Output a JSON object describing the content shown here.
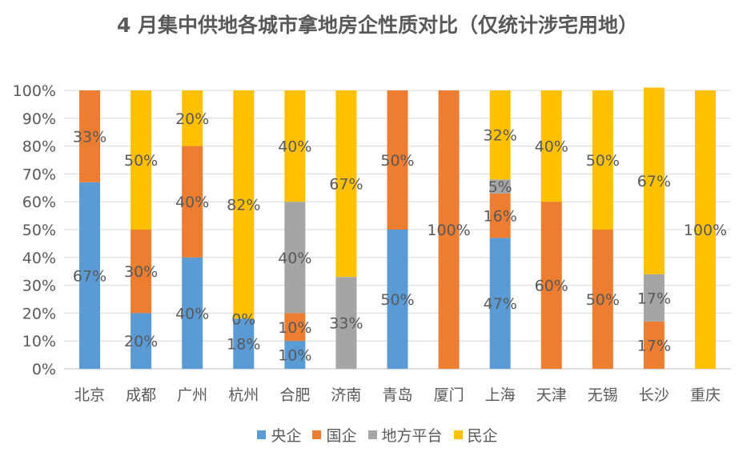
{
  "chart_data": {
    "type": "bar",
    "stacked": true,
    "title": "4 月集中供地各城市拿地房企性质对比（仅统计涉宅用地）",
    "categories": [
      "北京",
      "成都",
      "广州",
      "杭州",
      "合肥",
      "济南",
      "青岛",
      "厦门",
      "上海",
      "天津",
      "无锡",
      "长沙",
      "重庆"
    ],
    "yticks": [
      "0%",
      "10%",
      "20%",
      "30%",
      "40%",
      "50%",
      "60%",
      "70%",
      "80%",
      "90%",
      "100%"
    ],
    "ylim": [
      0,
      100
    ],
    "series": [
      {
        "name": "央企",
        "color": "#5B9BD5",
        "values": [
          67,
          20,
          40,
          18,
          10,
          0,
          50,
          0,
          47,
          0,
          0,
          0,
          0
        ],
        "labels": [
          "67%",
          "20%",
          "40%",
          "18%",
          "10%",
          "",
          "50%",
          "",
          "47%",
          "",
          "",
          "",
          ""
        ]
      },
      {
        "name": "国企",
        "color": "#ED7D31",
        "values": [
          33,
          30,
          40,
          0,
          10,
          0,
          50,
          100,
          16,
          60,
          50,
          17,
          0
        ],
        "labels": [
          "33%",
          "30%",
          "40%",
          "0%",
          "10%",
          "",
          "50%",
          "100%",
          "16%",
          "60%",
          "50%",
          "17%",
          ""
        ]
      },
      {
        "name": "地方平台",
        "color": "#A5A5A5",
        "values": [
          0,
          0,
          0,
          0,
          40,
          33,
          0,
          0,
          5,
          0,
          0,
          17,
          0
        ],
        "labels": [
          "",
          "",
          "",
          "",
          "40%",
          "33%",
          "",
          "",
          "5%",
          "",
          "",
          "17%",
          ""
        ]
      },
      {
        "name": "民企",
        "color": "#FFC000",
        "values": [
          0,
          50,
          20,
          82,
          40,
          67,
          0,
          0,
          32,
          40,
          50,
          67,
          100
        ],
        "labels": [
          "",
          "50%",
          "20%",
          "82%",
          "40%",
          "67%",
          "",
          "",
          "32%",
          "40%",
          "50%",
          "67%",
          "100%"
        ]
      }
    ]
  }
}
